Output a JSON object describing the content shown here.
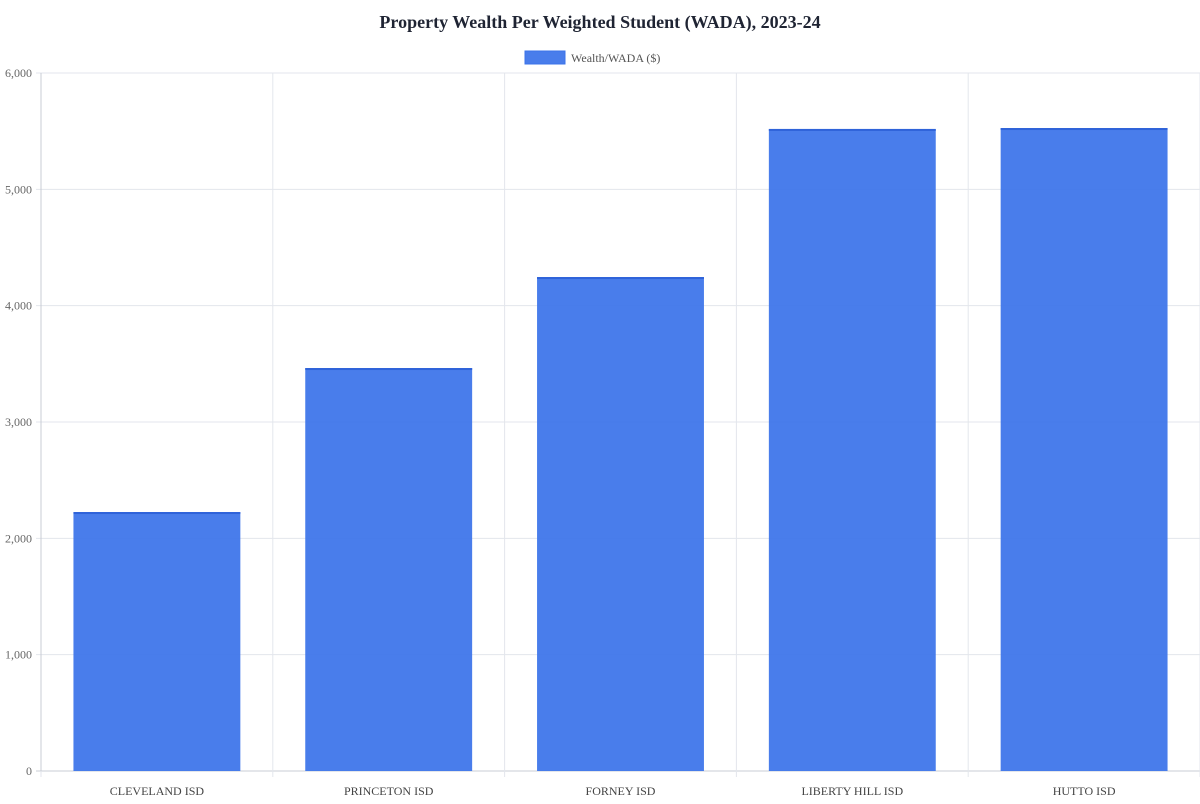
{
  "chart_data": {
    "type": "bar",
    "title": "Property Wealth Per Weighted Student (WADA), 2023-24",
    "categories": [
      "CLEVELAND ISD",
      "PRINCETON ISD",
      "FORNEY ISD",
      "LIBERTY HILL ISD",
      "HUTTO ISD"
    ],
    "series": [
      {
        "name": "Wealth/WADA ($)",
        "values": [
          2226,
          3464,
          4246,
          5519,
          5527
        ],
        "color": "#3b73ea"
      }
    ],
    "ylim": [
      0,
      6000
    ],
    "yticks": [
      0,
      1000,
      2000,
      3000,
      4000,
      5000,
      6000
    ],
    "ytick_labels": [
      "0",
      "1,000",
      "2,000",
      "3,000",
      "4,000",
      "5,000",
      "6,000"
    ],
    "grid": true,
    "legend_position": "top-center"
  }
}
